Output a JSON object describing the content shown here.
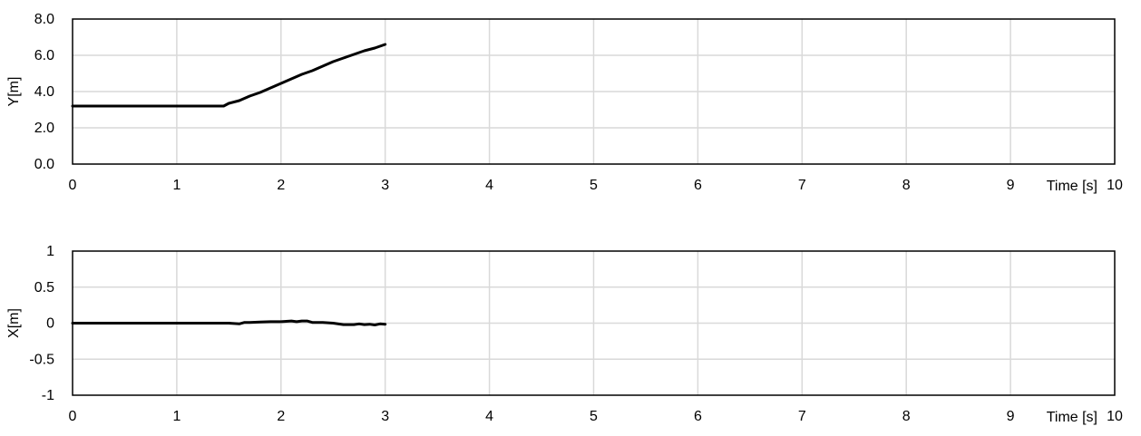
{
  "chart_data": [
    {
      "type": "line",
      "ylabel": "Y[m]",
      "xlabel": "Time [s]",
      "xlim": [
        0,
        10
      ],
      "ylim": [
        0,
        8
      ],
      "x_ticks": [
        0,
        1,
        2,
        3,
        4,
        5,
        6,
        7,
        8,
        9,
        10
      ],
      "x_tick_labels": [
        "0",
        "1",
        "2",
        "3",
        "4",
        "5",
        "6",
        "7",
        "8",
        "9",
        "10"
      ],
      "y_ticks": [
        0,
        2,
        4,
        6,
        8
      ],
      "y_tick_labels": [
        "0.0",
        "2.0",
        "4.0",
        "6.0",
        "8.0"
      ],
      "grid": true,
      "series": [
        {
          "color": "#000000",
          "x": [
            0,
            0.5,
            1.0,
            1.45,
            1.5,
            1.6,
            1.7,
            1.8,
            1.9,
            2.0,
            2.1,
            2.2,
            2.3,
            2.4,
            2.5,
            2.6,
            2.7,
            2.8,
            2.9,
            3.0
          ],
          "y": [
            3.2,
            3.2,
            3.2,
            3.2,
            3.35,
            3.5,
            3.75,
            3.95,
            4.2,
            4.45,
            4.7,
            4.95,
            5.15,
            5.4,
            5.65,
            5.85,
            6.05,
            6.25,
            6.4,
            6.6
          ]
        }
      ]
    },
    {
      "type": "line",
      "ylabel": "X[m]",
      "xlabel": "Time [s]",
      "xlim": [
        0,
        10
      ],
      "ylim": [
        -1,
        1
      ],
      "x_ticks": [
        0,
        1,
        2,
        3,
        4,
        5,
        6,
        7,
        8,
        9,
        10
      ],
      "x_tick_labels": [
        "0",
        "1",
        "2",
        "3",
        "4",
        "5",
        "6",
        "7",
        "8",
        "9",
        "10"
      ],
      "y_ticks": [
        -1,
        -0.5,
        0,
        0.5,
        1
      ],
      "y_tick_labels": [
        "-1",
        "-0.5",
        "0",
        "0.5",
        "1"
      ],
      "grid": true,
      "series": [
        {
          "color": "#000000",
          "x": [
            0,
            0.5,
            1.0,
            1.5,
            1.6,
            1.65,
            1.7,
            1.8,
            1.9,
            2.0,
            2.1,
            2.15,
            2.2,
            2.25,
            2.3,
            2.4,
            2.5,
            2.6,
            2.7,
            2.75,
            2.8,
            2.85,
            2.9,
            2.95,
            3.0
          ],
          "y": [
            0,
            0,
            0,
            0,
            -0.01,
            0.01,
            0.01,
            0.015,
            0.02,
            0.02,
            0.03,
            0.02,
            0.03,
            0.03,
            0.01,
            0.01,
            0.0,
            -0.02,
            -0.02,
            -0.01,
            -0.02,
            -0.015,
            -0.025,
            -0.01,
            -0.015
          ]
        }
      ]
    }
  ]
}
